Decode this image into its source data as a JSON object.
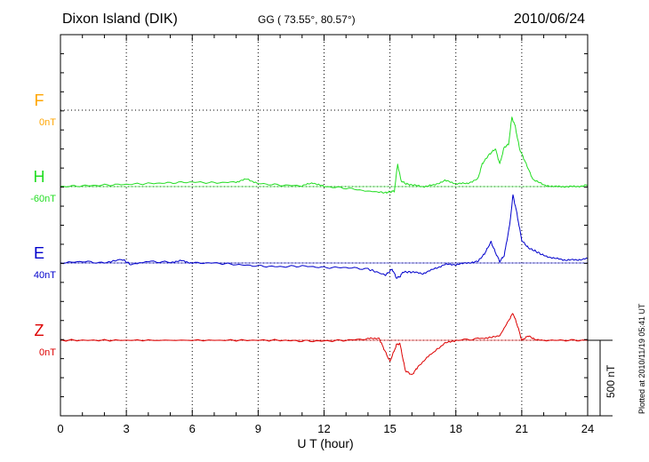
{
  "header": {
    "station": "Dixon Island (DIK)",
    "coords": "GG ( 73.55°,  80.57°)",
    "date": "2010/06/24"
  },
  "footer": {
    "plotted_note": "Plotted at 2010/11/19 05:41 UT"
  },
  "scale_bar": {
    "label": "500 nT",
    "value_nT": 500
  },
  "colors": {
    "F": "#ffa500",
    "H": "#22dd22",
    "E": "#0000cc",
    "Z": "#dd0000",
    "axis": "#000000",
    "grid": "#000000"
  },
  "chart_data": {
    "type": "line",
    "xlabel": "U T (hour)",
    "xlim": [
      0,
      24
    ],
    "xticks": [
      0,
      3,
      6,
      9,
      12,
      15,
      18,
      21,
      24
    ],
    "grid": true,
    "scale_nT_per_bar": 500,
    "series": [
      {
        "name": "F",
        "baseline": "0nT",
        "values": []
      },
      {
        "name": "H",
        "baseline": "-60nT",
        "x": [
          0,
          1,
          2,
          3,
          4,
          5,
          6,
          7,
          8,
          8.5,
          9,
          10,
          11,
          11.5,
          12,
          13,
          14,
          14.8,
          15.0,
          15.2,
          15.35,
          15.5,
          15.7,
          16.0,
          16.5,
          17,
          17.5,
          18,
          18.5,
          19,
          19.2,
          19.5,
          19.8,
          20.0,
          20.2,
          20.4,
          20.55,
          20.7,
          20.9,
          21.2,
          21.5,
          22,
          22.5,
          23,
          23.5,
          24
        ],
        "values": [
          0,
          5,
          10,
          15,
          20,
          25,
          30,
          25,
          30,
          50,
          20,
          10,
          5,
          25,
          0,
          -10,
          -30,
          -40,
          -35,
          -30,
          150,
          40,
          20,
          10,
          0,
          10,
          40,
          20,
          20,
          50,
          150,
          210,
          250,
          150,
          260,
          280,
          460,
          400,
          250,
          150,
          50,
          10,
          0,
          0,
          0,
          10
        ]
      },
      {
        "name": "E",
        "baseline": "40nT",
        "x": [
          0,
          1,
          2,
          2.8,
          3.2,
          4,
          5,
          5.5,
          6,
          7,
          8,
          9,
          10,
          11,
          12,
          13,
          14,
          14.8,
          15.1,
          15.3,
          15.45,
          15.6,
          16.0,
          16.5,
          17,
          17.5,
          18,
          18.5,
          19,
          19.3,
          19.6,
          19.8,
          20.0,
          20.2,
          20.45,
          20.6,
          20.75,
          21.0,
          21.3,
          21.6,
          22,
          22.5,
          23,
          23.5,
          24
        ],
        "values": [
          0,
          10,
          0,
          25,
          -10,
          10,
          5,
          15,
          0,
          0,
          -10,
          -20,
          -25,
          -20,
          -30,
          -30,
          -40,
          -80,
          -40,
          -100,
          -90,
          -60,
          -60,
          -70,
          -40,
          -10,
          -10,
          0,
          10,
          60,
          140,
          70,
          10,
          50,
          250,
          450,
          350,
          150,
          100,
          80,
          50,
          30,
          20,
          20,
          30
        ]
      },
      {
        "name": "Z",
        "baseline": "0nT",
        "x": [
          0,
          2,
          4,
          6,
          8,
          10,
          11,
          12,
          13,
          14,
          14.5,
          14.8,
          15.0,
          15.3,
          15.45,
          15.7,
          16.0,
          16.3,
          16.8,
          17.5,
          18,
          19,
          19.6,
          20.0,
          20.4,
          20.6,
          20.8,
          21.0,
          21.3,
          21.6,
          22,
          23,
          24
        ],
        "values": [
          0,
          0,
          0,
          0,
          0,
          0,
          -5,
          -5,
          0,
          10,
          15,
          -80,
          -140,
          -30,
          -20,
          -200,
          -230,
          -170,
          -100,
          -20,
          0,
          10,
          20,
          30,
          130,
          180,
          100,
          0,
          30,
          5,
          0,
          0,
          0
        ]
      }
    ]
  }
}
